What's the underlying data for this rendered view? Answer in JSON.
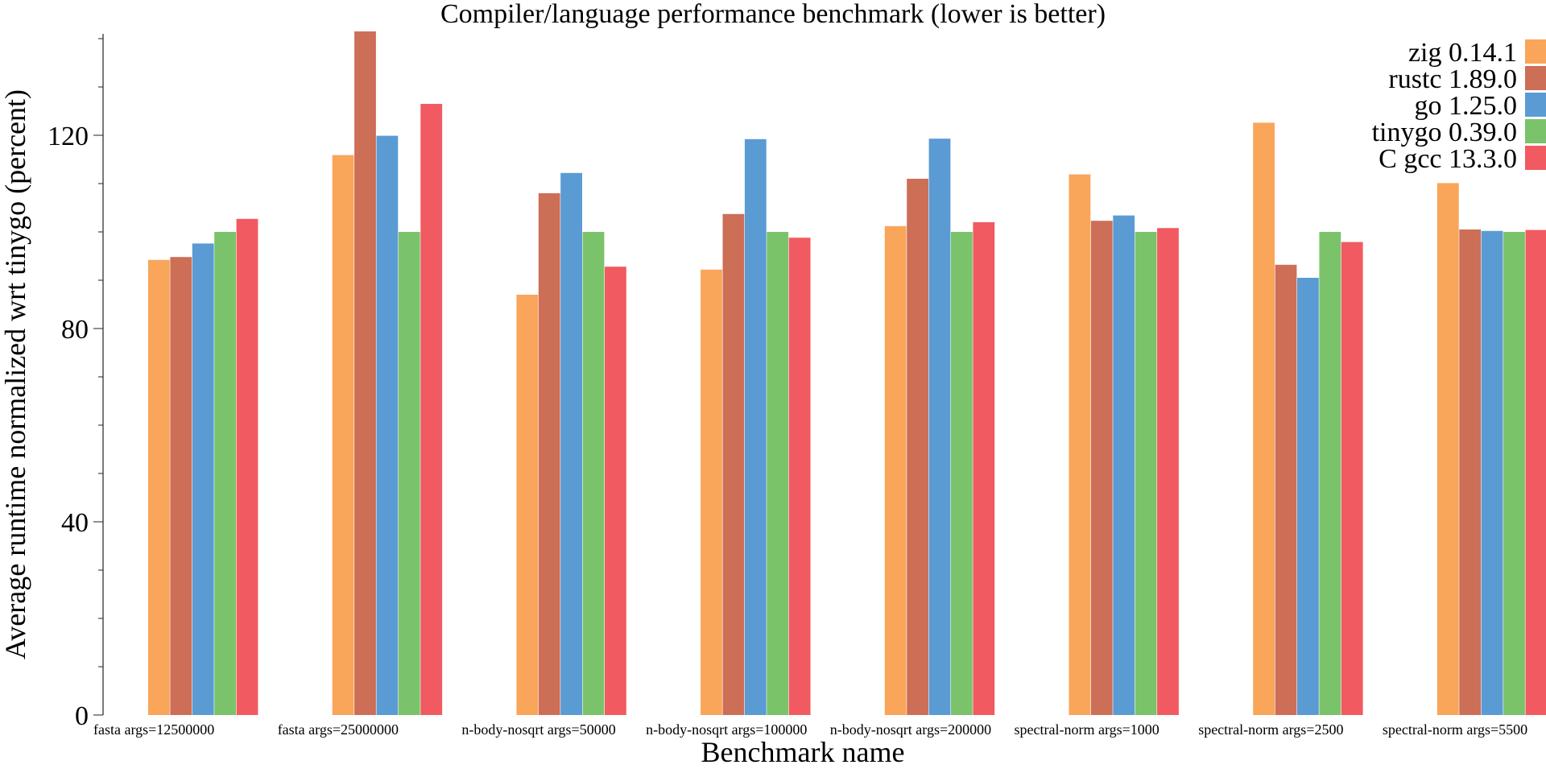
{
  "chart_data": {
    "type": "bar",
    "title": "Compiler/language performance benchmark (lower is better)",
    "xlabel": "Benchmark name",
    "ylabel": "Average runtime normalized wrt tinygo (percent)",
    "ylim": [
      0,
      141
    ],
    "yticks": [
      0,
      40,
      80,
      120
    ],
    "grid": false,
    "legend_position": "top-right",
    "categories": [
      "fasta args=12500000",
      "fasta args=25000000",
      "n-body-nosqrt args=50000",
      "n-body-nosqrt args=100000",
      "n-body-nosqrt args=200000",
      "spectral-norm args=1000",
      "spectral-norm args=2500",
      "spectral-norm args=5500"
    ],
    "series": [
      {
        "name": "zig 0.14.1",
        "color": "#f9a55a",
        "values": [
          94.2,
          115.9,
          87.0,
          92.2,
          101.2,
          111.9,
          122.6,
          110.1
        ]
      },
      {
        "name": "rustc 1.89.0",
        "color": "#cd6e57",
        "values": [
          94.8,
          141.5,
          108.0,
          103.7,
          111.0,
          102.3,
          93.2,
          100.5
        ]
      },
      {
        "name": "go 1.25.0",
        "color": "#5a9bd4",
        "values": [
          97.6,
          119.9,
          112.2,
          119.2,
          119.3,
          103.4,
          90.5,
          100.2
        ]
      },
      {
        "name": "tinygo 0.39.0",
        "color": "#7ac36a",
        "values": [
          100.0,
          100.0,
          100.0,
          100.0,
          100.0,
          100.0,
          100.0,
          100.0
        ]
      },
      {
        "name": "C gcc 13.3.0",
        "color": "#f15a60",
        "values": [
          102.7,
          126.5,
          92.8,
          98.8,
          102.0,
          100.8,
          97.9,
          100.4
        ]
      }
    ]
  }
}
